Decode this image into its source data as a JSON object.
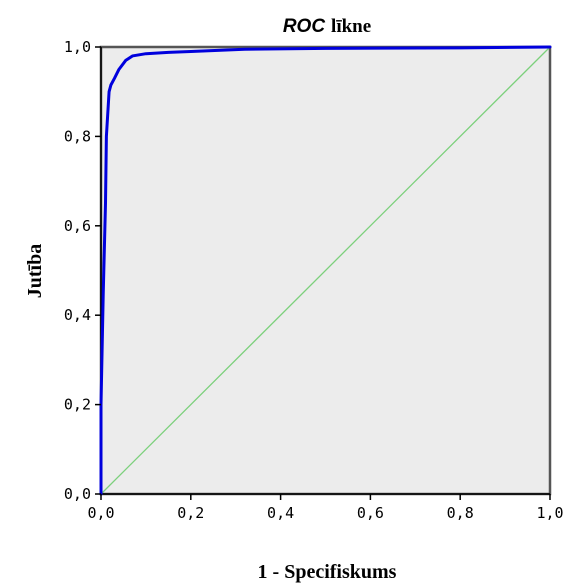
{
  "chart_data": {
    "type": "line",
    "title": {
      "italic_part": "ROC",
      "rest": "līkne"
    },
    "xlabel": "1 - Specifiskums",
    "ylabel": "Jutība",
    "xlim": [
      0,
      1
    ],
    "ylim": [
      0,
      1
    ],
    "x_ticks": [
      "0,0",
      "0,2",
      "0,4",
      "0,6",
      "0,8",
      "1,0"
    ],
    "y_ticks": [
      "0,0",
      "0,2",
      "0,4",
      "0,6",
      "0,8",
      "1,0"
    ],
    "grid": false,
    "colors": {
      "plot_background": "#ececec",
      "roc_curve": "#0000dd",
      "diagonal": "#7cd07c",
      "frame": "#000000",
      "outer_border": "#555555"
    },
    "series": [
      {
        "x": [
          0.0,
          0.0,
          0.005,
          0.01,
          0.012,
          0.018,
          0.022,
          0.03,
          0.04,
          0.055,
          0.07,
          0.1,
          0.15,
          0.2,
          0.32,
          0.5,
          0.8,
          1.0
        ],
        "y": [
          0.0,
          0.2,
          0.45,
          0.65,
          0.8,
          0.9,
          0.915,
          0.93,
          0.95,
          0.97,
          0.98,
          0.985,
          0.988,
          0.99,
          0.995,
          0.997,
          0.998,
          1.0
        ]
      },
      {
        "x": [
          0.0,
          1.0
        ],
        "y": [
          0.0,
          1.0
        ]
      }
    ]
  }
}
